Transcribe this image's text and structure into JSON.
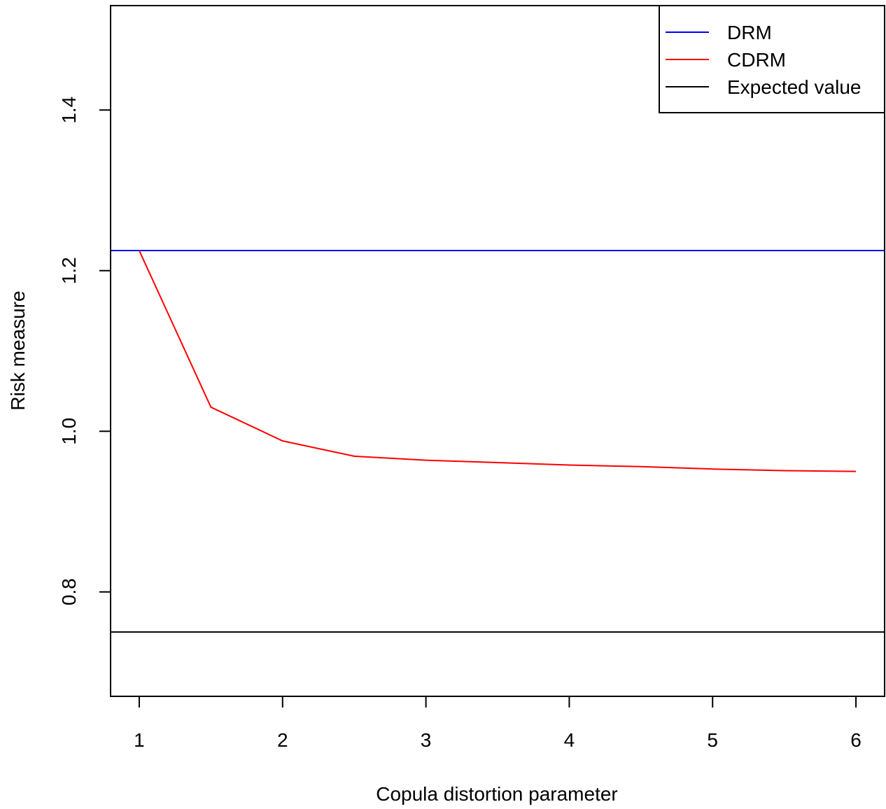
{
  "chart_data": {
    "type": "line",
    "xlabel": "Copula distortion parameter",
    "ylabel": "Risk measure",
    "xlim": [
      0.8,
      6.2
    ],
    "ylim": [
      0.67,
      1.53
    ],
    "xticks": [
      1,
      2,
      3,
      4,
      5,
      6
    ],
    "yticks": [
      0.8,
      1.0,
      1.2,
      1.4
    ],
    "ytick_labels": [
      "0.8",
      "1.0",
      "1.2",
      "1.4"
    ],
    "xtick_labels": [
      "1",
      "2",
      "3",
      "4",
      "5",
      "6"
    ],
    "grid": false,
    "legend_position": "top-right",
    "series": [
      {
        "name": "DRM",
        "color": "#0000ff",
        "kind": "hline",
        "y": 1.225
      },
      {
        "name": "CDRM",
        "color": "#ff0000",
        "kind": "line",
        "x": [
          1.0,
          1.5,
          2.0,
          2.5,
          3.0,
          3.5,
          4.0,
          4.5,
          5.0,
          5.5,
          6.0
        ],
        "y": [
          1.225,
          1.03,
          0.988,
          0.969,
          0.964,
          0.961,
          0.958,
          0.956,
          0.953,
          0.951,
          0.95
        ]
      },
      {
        "name": "Expected value",
        "color": "#000000",
        "kind": "hline",
        "y": 0.75
      }
    ]
  }
}
